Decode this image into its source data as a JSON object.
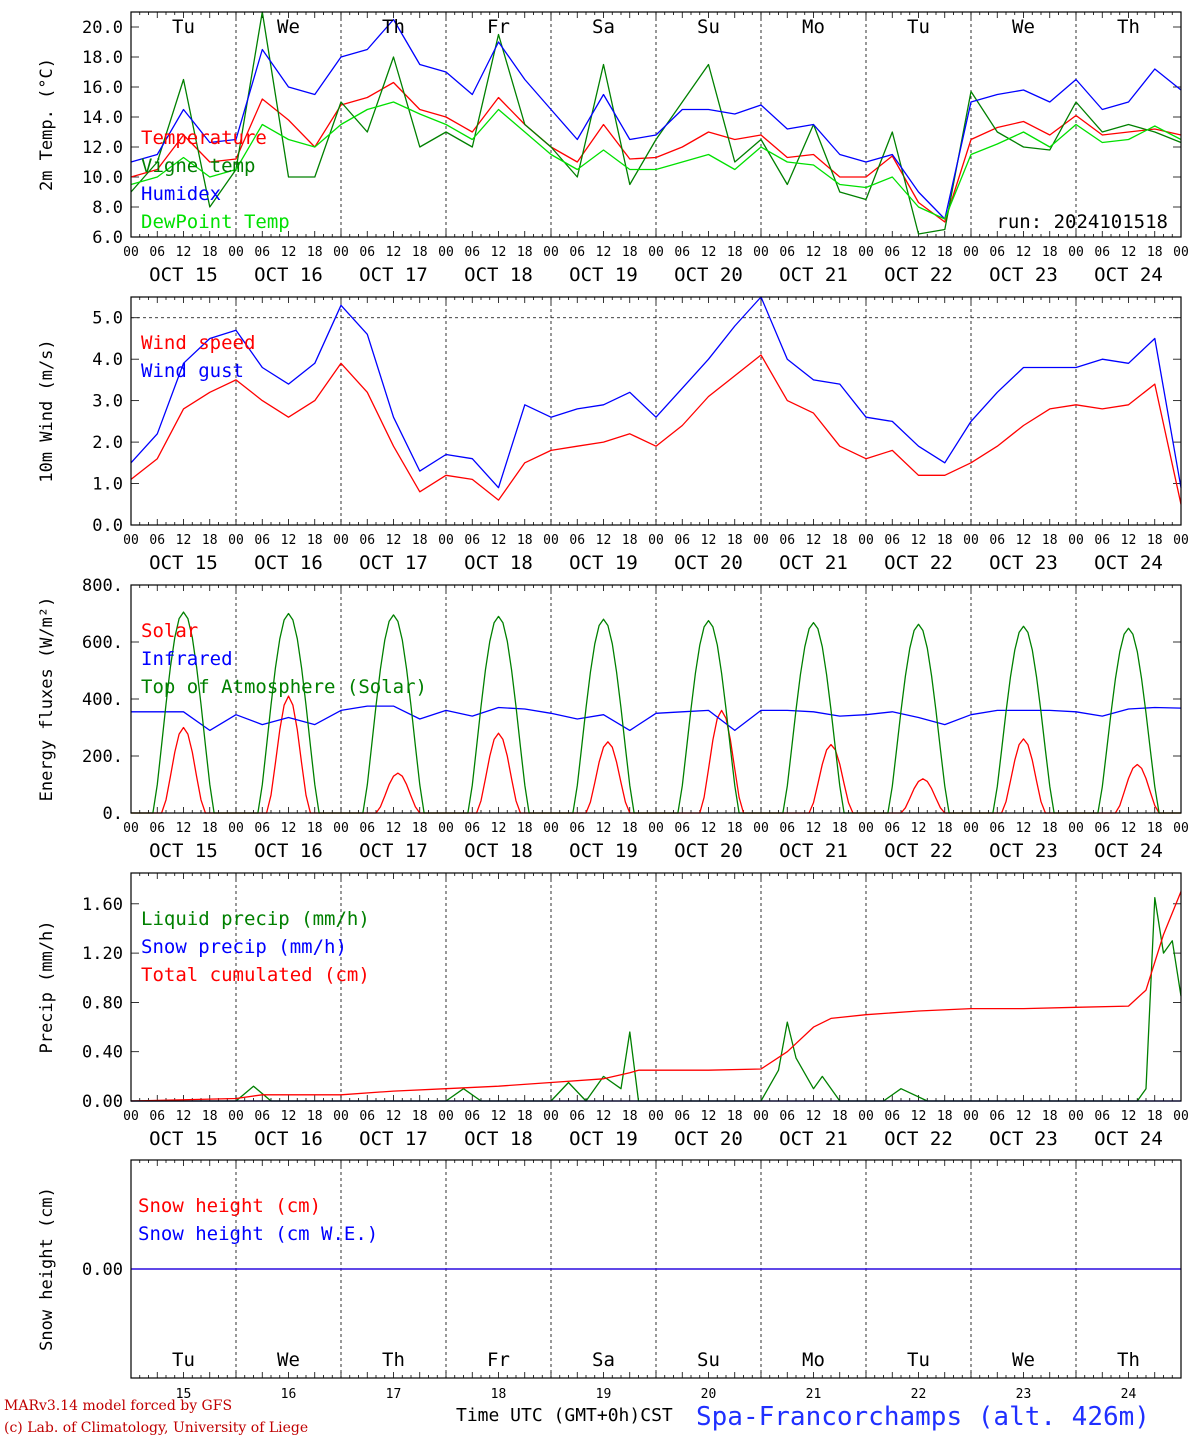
{
  "meta": {
    "run_label": "run: 2024101518",
    "footer_line1": "MARv3.14 model forced by GFS",
    "footer_line2": "(c) Lab. of Climatology, University of Liege",
    "x_axis_title": "Time UTC (GMT+0h)",
    "x_axis_title_suffix": "CST",
    "station": "Spa-Francorchamps (alt. 426m)"
  },
  "time_axis": {
    "hour_ticks": [
      "00",
      "06",
      "12",
      "18"
    ],
    "date_labels": [
      "OCT 15",
      "OCT 16",
      "OCT 17",
      "OCT 18",
      "OCT 19",
      "OCT 20",
      "OCT 21",
      "OCT 22",
      "OCT 23",
      "OCT 24"
    ],
    "weekdays": [
      "Tu",
      "We",
      "Th",
      "Fr",
      "Sa",
      "Su",
      "Mo",
      "Tu",
      "We",
      "Th"
    ],
    "weekend_color": "#ff0000",
    "weekend_flags": [
      false,
      false,
      false,
      false,
      true,
      true,
      false,
      false,
      false,
      false
    ],
    "day_numbers": [
      "15",
      "16",
      "17",
      "18",
      "19",
      "20",
      "21",
      "22",
      "23",
      "24"
    ],
    "final_tick": "00"
  },
  "chart_data": [
    {
      "id": "temperature",
      "type": "line",
      "ylabel": "2m Temp. (°C)",
      "ylim": [
        6,
        21
      ],
      "yticks": [
        6,
        8,
        10,
        12,
        14,
        16,
        18,
        20
      ],
      "ytick_labels": [
        "6.0",
        "8.0",
        "10.0",
        "12.0",
        "14.0",
        "16.0",
        "18.0",
        "20.0"
      ],
      "ref_line": null,
      "x_unit": "hours since OCT 15 00 UTC",
      "series": [
        {
          "name": "Temperature",
          "color": "#ff0000",
          "x": [
            0,
            6,
            12,
            18,
            24,
            30,
            36,
            42,
            48,
            54,
            60,
            66,
            72,
            78,
            84,
            90,
            96,
            102,
            108,
            114,
            120,
            126,
            132,
            138,
            144,
            150,
            156,
            162,
            168,
            174,
            180,
            186,
            192,
            198,
            204,
            210,
            216,
            222,
            228,
            234,
            240
          ],
          "y": [
            10.0,
            10.5,
            12.8,
            11.0,
            11.2,
            15.2,
            13.8,
            12.0,
            14.8,
            15.3,
            16.3,
            14.5,
            14.0,
            13.0,
            15.3,
            13.5,
            12.0,
            11.0,
            13.5,
            11.2,
            11.3,
            12.0,
            13.0,
            12.5,
            12.8,
            11.3,
            11.5,
            10.0,
            10.0,
            11.4,
            8.3,
            7.0,
            12.5,
            13.3,
            13.7,
            12.8,
            14.1,
            12.8,
            13.0,
            13.2,
            12.8
          ]
        },
        {
          "name": "Vigne temp",
          "color": "#008000",
          "x": [
            0,
            6,
            12,
            18,
            24,
            30,
            36,
            42,
            48,
            54,
            60,
            66,
            72,
            78,
            84,
            90,
            96,
            102,
            108,
            114,
            120,
            126,
            132,
            138,
            144,
            150,
            156,
            162,
            168,
            174,
            180,
            186,
            192,
            198,
            204,
            210,
            216,
            222,
            228,
            234,
            240
          ],
          "y": [
            9.0,
            11.0,
            16.5,
            8.0,
            10.5,
            21.0,
            10.0,
            10.0,
            15.0,
            13.0,
            18.0,
            12.0,
            13.0,
            12.0,
            19.5,
            13.5,
            12.0,
            10.0,
            17.5,
            9.5,
            12.5,
            15.0,
            17.5,
            11.0,
            12.5,
            9.5,
            13.5,
            9.0,
            8.5,
            13.0,
            6.2,
            6.5,
            15.7,
            13.0,
            12.0,
            11.8,
            15.0,
            13.0,
            13.5,
            13.0,
            12.3
          ]
        },
        {
          "name": "Humidex",
          "color": "#0000ff",
          "x": [
            0,
            6,
            12,
            18,
            24,
            30,
            36,
            42,
            48,
            54,
            60,
            66,
            72,
            78,
            84,
            90,
            96,
            102,
            108,
            114,
            120,
            126,
            132,
            138,
            144,
            150,
            156,
            162,
            168,
            174,
            180,
            186,
            192,
            198,
            204,
            210,
            216,
            222,
            228,
            234,
            240
          ],
          "y": [
            11.0,
            11.5,
            14.5,
            12.3,
            12.5,
            18.5,
            16.0,
            15.5,
            18.0,
            18.5,
            20.5,
            17.5,
            17.0,
            15.5,
            19.0,
            16.5,
            14.5,
            12.5,
            15.5,
            12.5,
            12.8,
            14.5,
            14.5,
            14.2,
            14.8,
            13.2,
            13.5,
            11.5,
            11.0,
            11.5,
            9.0,
            7.2,
            15.0,
            15.5,
            15.8,
            15.0,
            16.5,
            14.5,
            15.0,
            17.2,
            15.8
          ]
        },
        {
          "name": "DewPoint Temp",
          "color": "#00e000",
          "x": [
            0,
            6,
            12,
            18,
            24,
            30,
            36,
            42,
            48,
            54,
            60,
            66,
            72,
            78,
            84,
            90,
            96,
            102,
            108,
            114,
            120,
            126,
            132,
            138,
            144,
            150,
            156,
            162,
            168,
            174,
            180,
            186,
            192,
            198,
            204,
            210,
            216,
            222,
            228,
            234,
            240
          ],
          "y": [
            9.5,
            10.0,
            11.3,
            10.0,
            10.5,
            13.5,
            12.5,
            12.0,
            13.5,
            14.5,
            15.0,
            14.2,
            13.5,
            12.5,
            14.5,
            13.0,
            11.5,
            10.5,
            11.8,
            10.5,
            10.5,
            11.0,
            11.5,
            10.5,
            12.0,
            11.0,
            10.8,
            9.5,
            9.3,
            10.0,
            8.0,
            7.2,
            11.5,
            12.2,
            13.0,
            12.0,
            13.5,
            12.3,
            12.5,
            13.4,
            12.5
          ]
        }
      ]
    },
    {
      "id": "wind",
      "type": "line",
      "ylabel": "10m Wind (m/s)",
      "ylim": [
        0,
        5.5
      ],
      "yticks": [
        0,
        1,
        2,
        3,
        4,
        5
      ],
      "ytick_labels": [
        "0.0",
        "1.0",
        "2.0",
        "3.0",
        "4.0",
        "5.0"
      ],
      "ref_line": 5.0,
      "x_unit": "hours since OCT 15 00 UTC",
      "series": [
        {
          "name": "Wind speed",
          "color": "#ff0000",
          "x": [
            0,
            6,
            12,
            18,
            24,
            30,
            36,
            42,
            48,
            54,
            60,
            66,
            72,
            78,
            84,
            90,
            96,
            102,
            108,
            114,
            120,
            126,
            132,
            138,
            144,
            150,
            156,
            162,
            168,
            174,
            180,
            186,
            192,
            198,
            204,
            210,
            216,
            222,
            228,
            234,
            240
          ],
          "y": [
            1.1,
            1.6,
            2.8,
            3.2,
            3.5,
            3.0,
            2.6,
            3.0,
            3.9,
            3.2,
            1.9,
            0.8,
            1.2,
            1.1,
            0.6,
            1.5,
            1.8,
            1.9,
            2.0,
            2.2,
            1.9,
            2.4,
            3.1,
            3.6,
            4.1,
            3.0,
            2.7,
            1.9,
            1.6,
            1.8,
            1.2,
            1.2,
            1.5,
            1.9,
            2.4,
            2.8,
            2.9,
            2.8,
            2.9,
            3.4,
            0.5
          ]
        },
        {
          "name": "Wind gust",
          "color": "#0000ff",
          "x": [
            0,
            6,
            12,
            18,
            24,
            30,
            36,
            42,
            48,
            54,
            60,
            66,
            72,
            78,
            84,
            90,
            96,
            102,
            108,
            114,
            120,
            126,
            132,
            138,
            144,
            150,
            156,
            162,
            168,
            174,
            180,
            186,
            192,
            198,
            204,
            210,
            216,
            222,
            228,
            234,
            240
          ],
          "y": [
            1.5,
            2.2,
            3.9,
            4.5,
            4.7,
            3.8,
            3.4,
            3.9,
            5.3,
            4.6,
            2.6,
            1.3,
            1.7,
            1.6,
            0.9,
            2.9,
            2.6,
            2.8,
            2.9,
            3.2,
            2.6,
            3.3,
            4.0,
            4.8,
            5.5,
            4.0,
            3.5,
            3.4,
            2.6,
            2.5,
            1.9,
            1.5,
            2.5,
            3.2,
            3.8,
            3.8,
            3.8,
            4.0,
            3.9,
            4.5,
            0.9
          ]
        }
      ]
    },
    {
      "id": "energy",
      "type": "line",
      "ylabel": "Energy fluxes (W/m²)",
      "ylim": [
        0,
        800
      ],
      "yticks": [
        0,
        200,
        400,
        600,
        800
      ],
      "ytick_labels": [
        "0.",
        "200.",
        "400.",
        "600.",
        "800."
      ],
      "ref_line": null,
      "x_unit": "hours since OCT 15 00 UTC",
      "series": [
        {
          "name": "Solar",
          "color": "#ff0000",
          "peaks": [
            300,
            410,
            140,
            280,
            250,
            360,
            240,
            120,
            260,
            170
          ],
          "peak_hours": [
            12,
            12,
            13,
            12,
            13,
            15,
            16,
            13,
            12,
            14
          ]
        },
        {
          "name": "Infrared",
          "color": "#0000ff",
          "x": [
            0,
            6,
            12,
            18,
            24,
            30,
            36,
            42,
            48,
            54,
            60,
            66,
            72,
            78,
            84,
            90,
            96,
            102,
            108,
            114,
            120,
            126,
            132,
            138,
            144,
            150,
            156,
            162,
            168,
            174,
            180,
            186,
            192,
            198,
            204,
            210,
            216,
            222,
            228,
            234,
            240
          ],
          "y": [
            355,
            355,
            355,
            290,
            345,
            310,
            335,
            310,
            360,
            375,
            375,
            330,
            360,
            340,
            370,
            365,
            350,
            330,
            345,
            290,
            350,
            355,
            360,
            290,
            360,
            360,
            355,
            340,
            345,
            355,
            335,
            310,
            345,
            360,
            360,
            360,
            355,
            340,
            365,
            370,
            368
          ]
        },
        {
          "name": "Top of Atmosphere (Solar)",
          "color": "#008000",
          "peaks": [
            705,
            700,
            695,
            690,
            680,
            675,
            668,
            662,
            655,
            648
          ]
        }
      ]
    },
    {
      "id": "precip",
      "type": "line",
      "ylabel": "Precip (mm/h)",
      "ylim": [
        0,
        1.85
      ],
      "yticks": [
        0,
        0.4,
        0.8,
        1.2,
        1.6
      ],
      "ytick_labels": [
        "0.00",
        "0.40",
        "0.80",
        "1.20",
        "1.60"
      ],
      "ref_line": null,
      "x_unit": "hours since OCT 15 00 UTC",
      "series": [
        {
          "name": "Liquid precip (mm/h)",
          "color": "#008000",
          "x": [
            0,
            24,
            28,
            32,
            36,
            72,
            76,
            80,
            84,
            96,
            100,
            104,
            108,
            112,
            114,
            116,
            118,
            120,
            140,
            144,
            148,
            150,
            152,
            156,
            158,
            162,
            166,
            172,
            176,
            182,
            206,
            220,
            230,
            232,
            234,
            236,
            238,
            240
          ],
          "y": [
            0,
            0,
            0.12,
            0,
            0,
            0,
            0.1,
            0,
            0,
            0,
            0.15,
            0,
            0.2,
            0.1,
            0.56,
            0,
            0,
            0,
            0,
            0,
            0.25,
            0.64,
            0.35,
            0.1,
            0.2,
            0,
            0,
            0,
            0.1,
            0,
            0,
            0,
            0,
            0.1,
            1.65,
            1.2,
            1.3,
            0.85
          ]
        },
        {
          "name": "Snow precip (mm/h)",
          "color": "#0000ff",
          "x": [
            0,
            240
          ],
          "y": [
            0,
            0
          ]
        },
        {
          "name": "Total cumulated (cm)",
          "color": "#ff0000",
          "x": [
            0,
            24,
            30,
            48,
            60,
            72,
            84,
            96,
            108,
            114,
            116,
            120,
            132,
            144,
            150,
            156,
            160,
            168,
            180,
            192,
            204,
            216,
            228,
            232,
            236,
            240
          ],
          "y": [
            0,
            0.02,
            0.05,
            0.05,
            0.08,
            0.1,
            0.12,
            0.15,
            0.18,
            0.23,
            0.25,
            0.25,
            0.25,
            0.26,
            0.4,
            0.6,
            0.67,
            0.7,
            0.73,
            0.75,
            0.75,
            0.76,
            0.77,
            0.9,
            1.35,
            1.7
          ]
        }
      ]
    },
    {
      "id": "snow",
      "type": "line",
      "ylabel": "Snow height (cm)",
      "ylim": [
        -1,
        1
      ],
      "yticks": [
        0
      ],
      "ytick_labels": [
        "0.00"
      ],
      "ref_line": null,
      "x_unit": "hours since OCT 15 00 UTC",
      "series": [
        {
          "name": "Snow height (cm)",
          "color": "#ff0000",
          "x": [
            0,
            240
          ],
          "y": [
            0,
            0
          ]
        },
        {
          "name": "Snow height (cm W.E.)",
          "color": "#0000ff",
          "x": [
            0,
            240
          ],
          "y": [
            0,
            0
          ]
        }
      ]
    }
  ]
}
